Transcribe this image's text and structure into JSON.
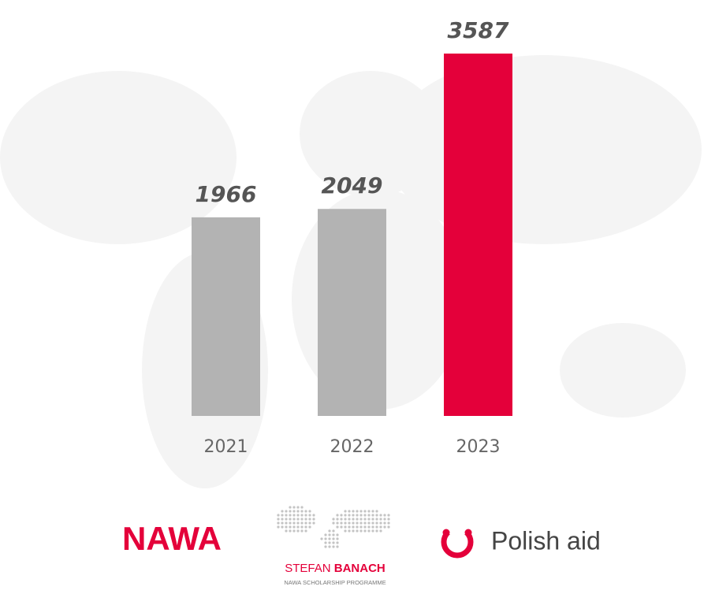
{
  "chart_data": {
    "type": "bar",
    "categories": [
      "2021",
      "2022",
      "2023"
    ],
    "values": [
      1966,
      2049,
      3587
    ],
    "colors": [
      "#b3b3b3",
      "#b3b3b3",
      "#e4003a"
    ]
  },
  "logos": {
    "nawa": "NAWA",
    "banach_first": "STEFAN",
    "banach_last": "BANACH",
    "banach_subtitle": "NAWA SCHOLARSHIP PROGRAMME",
    "polish_aid": "Polish aid"
  }
}
